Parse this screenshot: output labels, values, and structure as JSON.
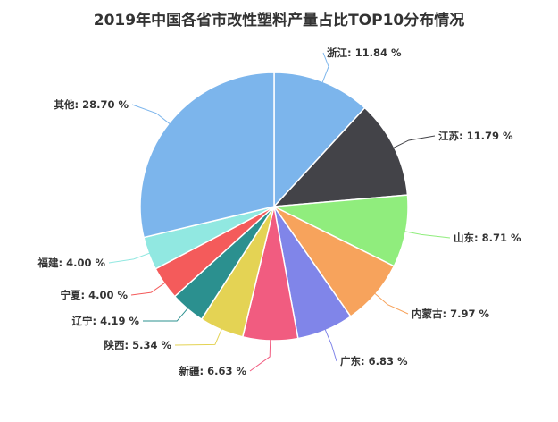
{
  "chart_data": {
    "type": "pie",
    "title": "2019年中国各省市改性塑料产量占比TOP10分布情况",
    "label_format": "{name}: {value} %",
    "slices": [
      {
        "name": "浙江",
        "value": 11.84,
        "color": "#7cb5ec"
      },
      {
        "name": "江苏",
        "value": 11.79,
        "color": "#434348"
      },
      {
        "name": "山东",
        "value": 8.71,
        "color": "#90ed7d"
      },
      {
        "name": "内蒙古",
        "value": 7.97,
        "color": "#f7a35c"
      },
      {
        "name": "广东",
        "value": 6.83,
        "color": "#8085e9"
      },
      {
        "name": "新疆",
        "value": 6.63,
        "color": "#f15c80"
      },
      {
        "name": "陕西",
        "value": 5.34,
        "color": "#e4d354"
      },
      {
        "name": "辽宁",
        "value": 4.19,
        "color": "#2b908f"
      },
      {
        "name": "宁夏",
        "value": 4.0,
        "color": "#f45b5b"
      },
      {
        "name": "福建",
        "value": 4.0,
        "color": "#91e8e1"
      },
      {
        "name": "其他",
        "value": 28.7,
        "color": "#7cb5ec"
      }
    ]
  }
}
